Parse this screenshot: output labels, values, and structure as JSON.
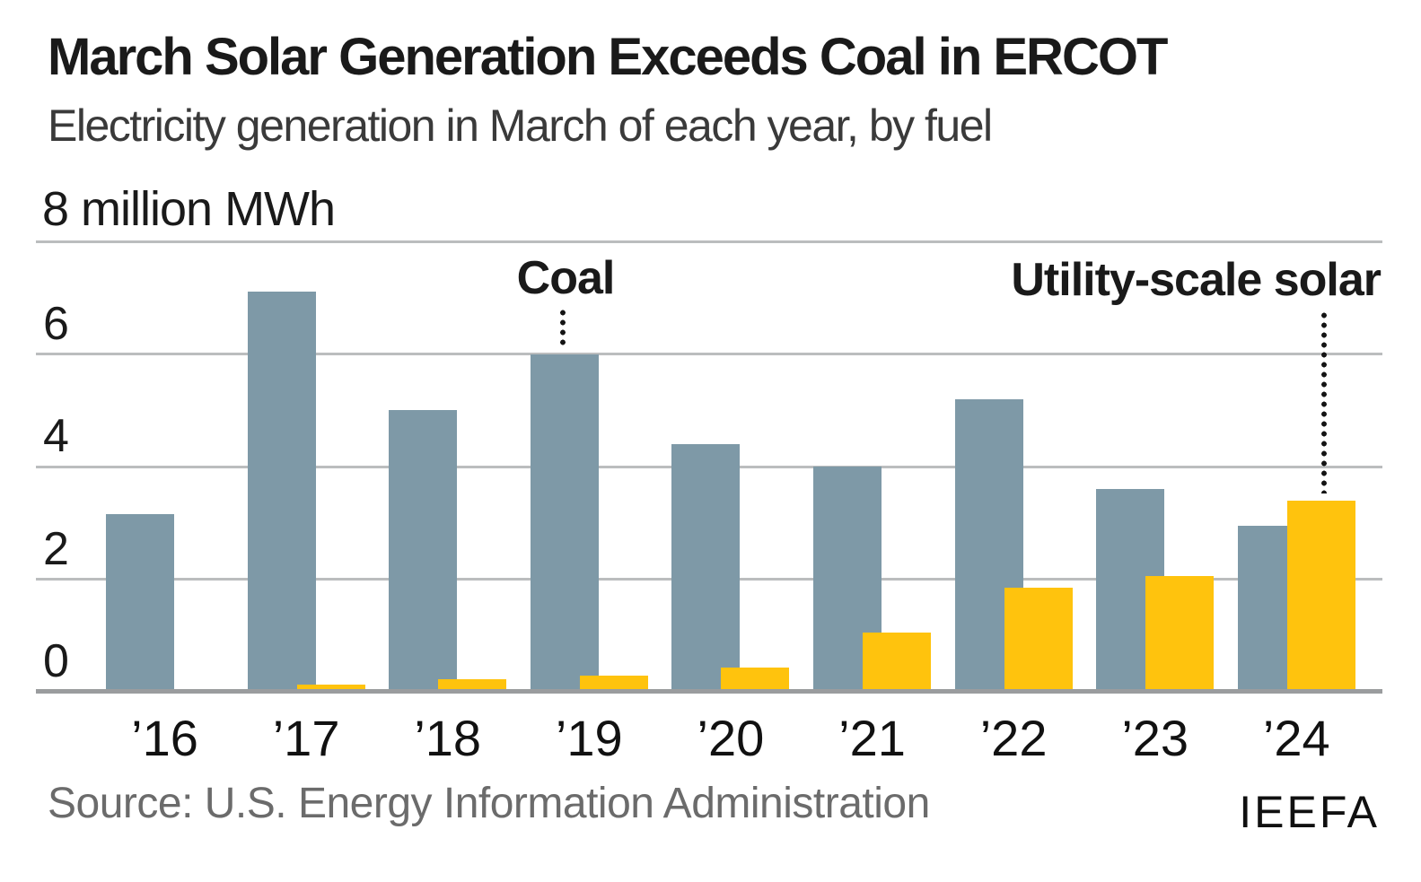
{
  "title": "March Solar Generation Exceeds Coal in ERCOT",
  "subtitle": "Electricity generation in March of each year, by fuel",
  "y_axis": {
    "top_label": "8 million MWh",
    "tick_labels": [
      "6",
      "4",
      "2",
      "0"
    ]
  },
  "annotations": {
    "coal_label": "Coal",
    "solar_label": "Utility-scale solar"
  },
  "footer": {
    "source": "Source: U.S. Energy Information Administration",
    "logo": "IEEFA"
  },
  "colors": {
    "coal": "#7E99A7",
    "solar": "#FFC30D",
    "gridline": "#BBBDBE",
    "baseline": "#9A9C9E"
  },
  "chart_data": {
    "type": "bar",
    "title": "March Solar Generation Exceeds Coal in ERCOT",
    "subtitle": "Electricity generation in March of each year, by fuel",
    "unit": "million MWh",
    "ylabel": "8 million MWh",
    "categories": [
      "’16",
      "’17",
      "’18",
      "’19",
      "’20",
      "’21",
      "’22",
      "’23",
      "’24"
    ],
    "series": [
      {
        "name": "Coal",
        "color": "#7E99A7",
        "values": [
          3.15,
          7.1,
          5.0,
          6.0,
          4.4,
          4.0,
          5.2,
          3.6,
          2.95
        ]
      },
      {
        "name": "Utility-scale solar",
        "color": "#FFC30D",
        "values": [
          0.05,
          0.13,
          0.22,
          0.28,
          0.43,
          1.05,
          1.85,
          2.05,
          3.4
        ]
      }
    ],
    "ylim": [
      0,
      8
    ],
    "gridlines": [
      0,
      2,
      4,
      6,
      8
    ],
    "grid": true,
    "legend_position": "in-plot labels with dotted leaders pointing to ’19 coal bar and ’24 solar bar",
    "source": "Source: U.S. Energy Information Administration"
  }
}
